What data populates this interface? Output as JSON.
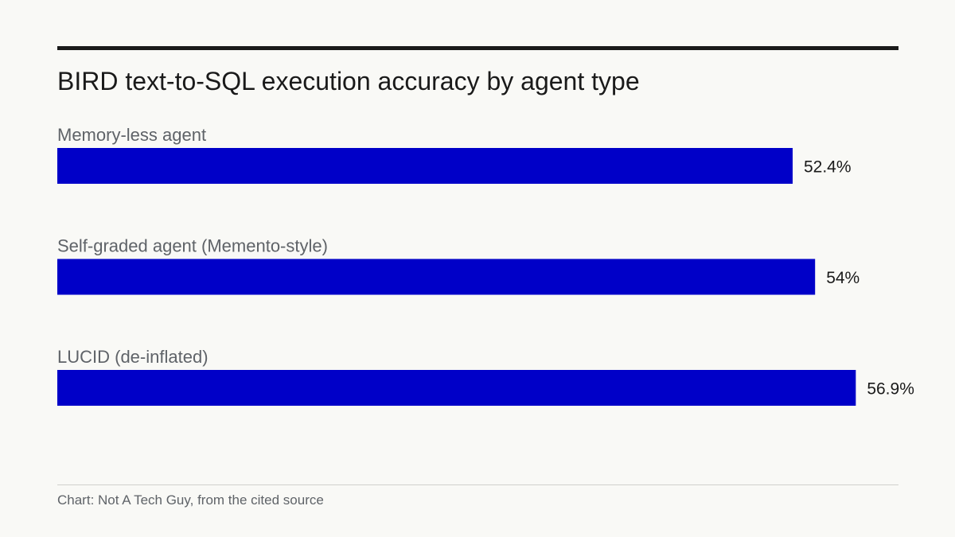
{
  "title": "BIRD text-to-SQL execution accuracy by agent type",
  "source": "Chart: Not A Tech Guy, from the cited source",
  "colors": {
    "bar": "#0000c8",
    "rule": "#1a1a1a",
    "background": "#f9f9f6"
  },
  "chart_data": {
    "type": "bar",
    "orientation": "horizontal",
    "title": "BIRD text-to-SQL execution accuracy by agent type",
    "categories": [
      "Memory-less agent",
      "Self-graded agent (Memento-style)",
      "LUCID (de-inflated)"
    ],
    "values": [
      52.4,
      54,
      56.9
    ],
    "value_labels": [
      "52.4%",
      "54%",
      "56.9%"
    ],
    "unit": "%",
    "xlim": [
      0,
      60
    ],
    "grid": false,
    "legend": "none"
  }
}
